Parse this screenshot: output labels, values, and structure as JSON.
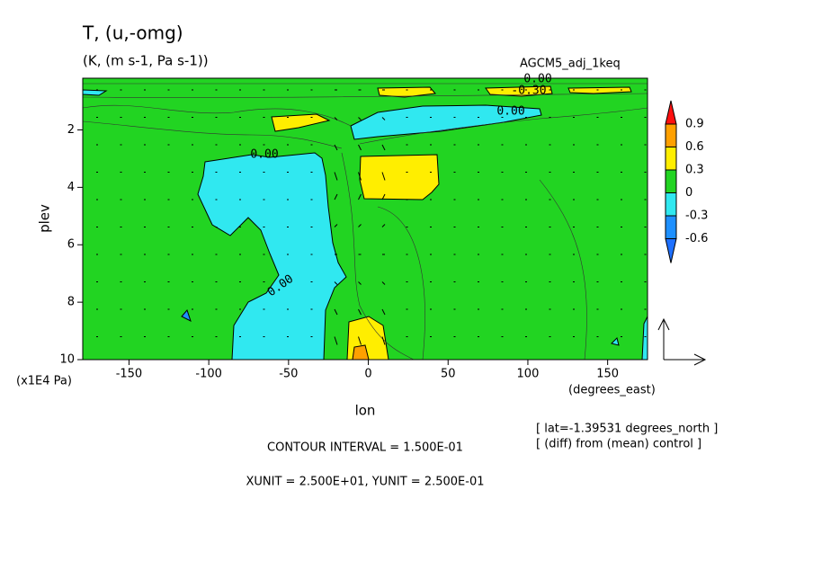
{
  "chart_data": {
    "type": "contour",
    "title": "T, (u,-omg)",
    "subtitle": "(K, (m s-1, Pa s-1))",
    "dataset": "AGCM5_adj_1keq",
    "xlabel": "lon",
    "ylabel": "plev",
    "xunit_label": "(degrees_east)",
    "yunit_label": "(x1E4 Pa)",
    "xlim": [
      -179,
      175
    ],
    "xticks": [
      -150,
      -100,
      -50,
      0,
      50,
      100,
      150
    ],
    "ylim": [
      10,
      0.2
    ],
    "yticks": [
      2,
      4,
      6,
      8,
      10
    ],
    "colorbar": {
      "levels": [
        0.9,
        0.6,
        0.3,
        0,
        -0.3,
        -0.6
      ],
      "colors": [
        "#ff1010",
        "#ffa000",
        "#ffee00",
        "#22d422",
        "#30e8f0",
        "#1e90ff",
        "#1e70ff"
      ]
    },
    "contour_labels": [
      {
        "value": 0,
        "label": "0.00"
      },
      {
        "value": 0,
        "label": "0.00"
      },
      {
        "value": -0.3,
        "label": "-0.30"
      },
      {
        "value": 0,
        "label": "0.00"
      },
      {
        "value": 0,
        "label": "0.00"
      }
    ],
    "notes": [
      "[ lat=-1.39531 degrees_north ]",
      "[ (diff) from (mean) control ]"
    ],
    "footer": [
      "CONTOUR INTERVAL = 1.500E-01",
      "XUNIT = 2.500E+01, YUNIT = 2.500E-01"
    ]
  }
}
